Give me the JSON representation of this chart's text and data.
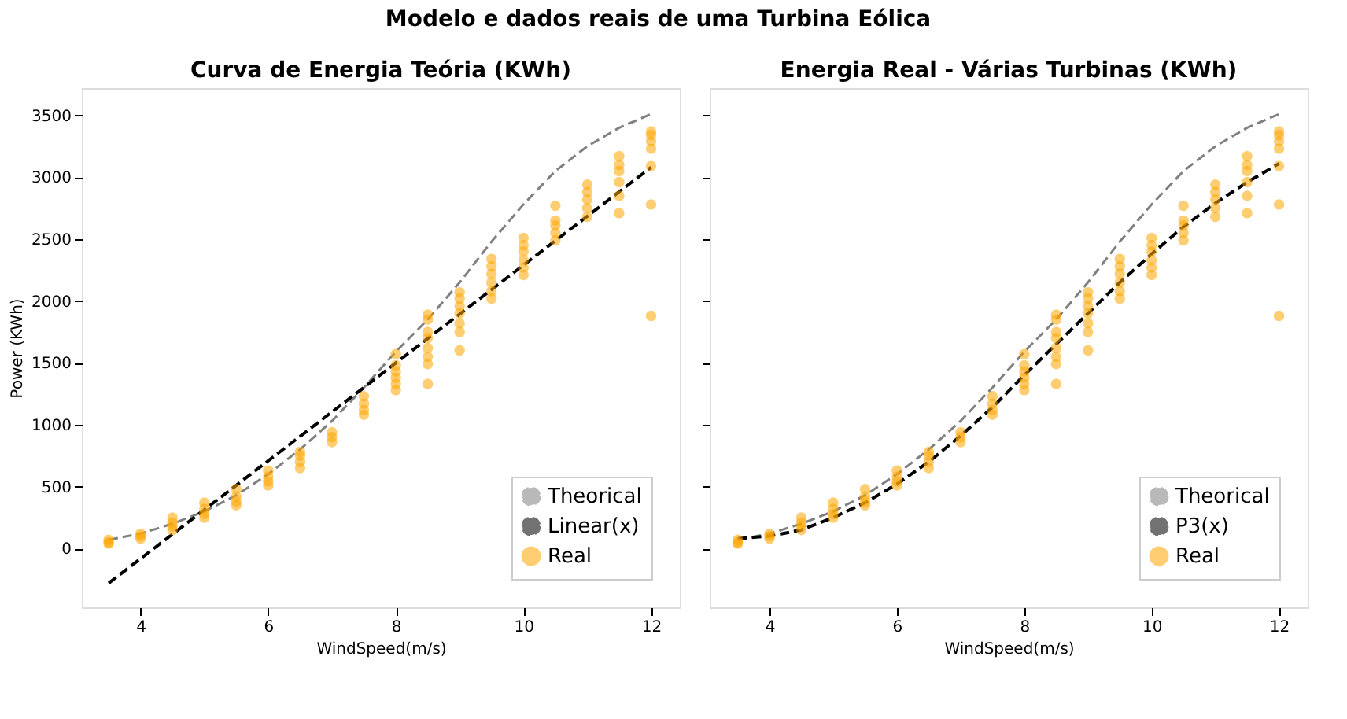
{
  "chart_data": [
    {
      "type": "scatter",
      "title": "Curva de Energia Teória (KWh)",
      "annotations": [
        "Modelo e dados reais de uma Turbina Eólica"
      ],
      "xlabel": "WindSpeed(m/s)",
      "ylabel": "Power (KWh)",
      "xlim": [
        3.08,
        12.45
      ],
      "xticks": [
        4,
        6,
        8,
        10,
        12
      ],
      "ylim": [
        -475,
        3720
      ],
      "yticks": [
        0,
        500,
        1000,
        1500,
        2000,
        2500,
        3000,
        3500
      ],
      "grid": false,
      "legend": "bottom right",
      "series": [
        {
          "name": "Theorical",
          "type": "line",
          "line_style": "dashed",
          "color": "#808080",
          "x": [
            3.5,
            4,
            4.5,
            5,
            5.5,
            6,
            6.5,
            7,
            7.5,
            8,
            8.5,
            9,
            9.5,
            10,
            10.5,
            11,
            11.5,
            12
          ],
          "values": [
            70,
            120,
            200,
            300,
            430,
            600,
            800,
            1030,
            1300,
            1590,
            1850,
            2150,
            2480,
            2780,
            3050,
            3250,
            3400,
            3510
          ]
        },
        {
          "name": "Linear(x)",
          "type": "line",
          "line_style": "dashed",
          "color": "#000000",
          "x": [
            3.5,
            12
          ],
          "values": [
            -280,
            3080
          ]
        },
        {
          "name": "Real",
          "color": "#ffa500",
          "x": [
            3.5,
            3.5,
            3.5,
            4,
            4,
            4,
            4.5,
            4.5,
            4.5,
            4.5,
            5,
            5,
            5,
            5,
            5.5,
            5.5,
            5.5,
            5.5,
            6,
            6,
            6,
            6,
            6.5,
            6.5,
            6.5,
            6.5,
            7,
            7,
            7,
            7.5,
            7.5,
            7.5,
            7.5,
            8,
            8,
            8,
            8,
            8,
            8,
            8.5,
            8.5,
            8.5,
            8.5,
            8.5,
            8.5,
            8.5,
            8.5,
            9,
            9,
            9,
            9,
            9,
            9,
            9,
            9.5,
            9.5,
            9.5,
            9.5,
            9.5,
            9.5,
            10,
            10,
            10,
            10,
            10,
            10,
            10.5,
            10.5,
            10.5,
            10.5,
            10.5,
            11,
            11,
            11,
            11,
            11,
            11.5,
            11.5,
            11.5,
            11.5,
            11.5,
            11.5,
            12,
            12,
            12,
            12,
            12,
            12,
            12
          ],
          "values": [
            40,
            50,
            70,
            80,
            100,
            120,
            150,
            180,
            210,
            250,
            250,
            280,
            320,
            370,
            350,
            380,
            420,
            480,
            510,
            540,
            580,
            630,
            650,
            700,
            750,
            780,
            860,
            900,
            940,
            1080,
            1120,
            1170,
            1230,
            1280,
            1330,
            1380,
            1430,
            1480,
            1570,
            1330,
            1490,
            1550,
            1620,
            1700,
            1750,
            1850,
            1890,
            1600,
            1750,
            1820,
            1900,
            1960,
            2020,
            2070,
            2020,
            2080,
            2150,
            2220,
            2280,
            2340,
            2210,
            2270,
            2330,
            2400,
            2450,
            2510,
            2490,
            2550,
            2610,
            2650,
            2770,
            2680,
            2750,
            2820,
            2880,
            2940,
            2710,
            2850,
            2960,
            3050,
            3100,
            3170,
            1880,
            2780,
            3090,
            3230,
            3290,
            3340,
            3370
          ]
        }
      ]
    },
    {
      "type": "scatter",
      "title": "Energia Real - Várias Turbinas (KWh)",
      "xlabel": "WindSpeed(m/s)",
      "xlim": [
        3.06,
        12.45
      ],
      "xticks": [
        4,
        6,
        8,
        10,
        12
      ],
      "ylim": [
        -475,
        3720
      ],
      "yticks": [
        0,
        500,
        1000,
        1500,
        2000,
        2500,
        3000,
        3500
      ],
      "tick_labels": "x",
      "grid": false,
      "legend": "bottom right",
      "series": [
        {
          "name": "Theorical",
          "type": "line",
          "line_style": "dashed",
          "color": "#808080",
          "x": [
            3.5,
            4,
            4.5,
            5,
            5.5,
            6,
            6.5,
            7,
            7.5,
            8,
            8.5,
            9,
            9.5,
            10,
            10.5,
            11,
            11.5,
            12
          ],
          "values": [
            70,
            120,
            200,
            300,
            430,
            600,
            800,
            1030,
            1300,
            1590,
            1850,
            2150,
            2480,
            2780,
            3050,
            3250,
            3400,
            3510
          ]
        },
        {
          "name": "P3(x)",
          "type": "line",
          "line_style": "dashed",
          "color": "#000000",
          "x": [
            3.5,
            4,
            4.5,
            5,
            5.5,
            6,
            6.5,
            7,
            7.5,
            8,
            8.5,
            9,
            9.5,
            10,
            10.5,
            11,
            11.5,
            12
          ],
          "values": [
            80,
            100,
            150,
            250,
            370,
            520,
            700,
            910,
            1140,
            1400,
            1650,
            1900,
            2150,
            2380,
            2600,
            2790,
            2960,
            3110
          ]
        },
        {
          "name": "Real",
          "color": "#ffa500",
          "x": [
            3.5,
            3.5,
            3.5,
            4,
            4,
            4,
            4.5,
            4.5,
            4.5,
            4.5,
            5,
            5,
            5,
            5,
            5.5,
            5.5,
            5.5,
            5.5,
            6,
            6,
            6,
            6,
            6.5,
            6.5,
            6.5,
            6.5,
            7,
            7,
            7,
            7.5,
            7.5,
            7.5,
            7.5,
            8,
            8,
            8,
            8,
            8,
            8,
            8.5,
            8.5,
            8.5,
            8.5,
            8.5,
            8.5,
            8.5,
            8.5,
            9,
            9,
            9,
            9,
            9,
            9,
            9,
            9.5,
            9.5,
            9.5,
            9.5,
            9.5,
            9.5,
            10,
            10,
            10,
            10,
            10,
            10,
            10.5,
            10.5,
            10.5,
            10.5,
            10.5,
            11,
            11,
            11,
            11,
            11,
            11.5,
            11.5,
            11.5,
            11.5,
            11.5,
            11.5,
            12,
            12,
            12,
            12,
            12,
            12,
            12
          ],
          "values": [
            40,
            50,
            70,
            80,
            100,
            120,
            150,
            180,
            210,
            250,
            250,
            280,
            320,
            370,
            350,
            380,
            420,
            480,
            510,
            540,
            580,
            630,
            650,
            700,
            750,
            780,
            860,
            900,
            940,
            1080,
            1120,
            1170,
            1230,
            1280,
            1330,
            1380,
            1430,
            1480,
            1570,
            1330,
            1490,
            1550,
            1620,
            1700,
            1750,
            1850,
            1890,
            1600,
            1750,
            1820,
            1900,
            1960,
            2020,
            2070,
            2020,
            2080,
            2150,
            2220,
            2280,
            2340,
            2210,
            2270,
            2330,
            2400,
            2450,
            2510,
            2490,
            2550,
            2610,
            2650,
            2770,
            2680,
            2750,
            2820,
            2880,
            2940,
            2710,
            2850,
            2960,
            3050,
            3100,
            3170,
            1880,
            2780,
            3090,
            3230,
            3290,
            3340,
            3370
          ]
        }
      ]
    }
  ]
}
